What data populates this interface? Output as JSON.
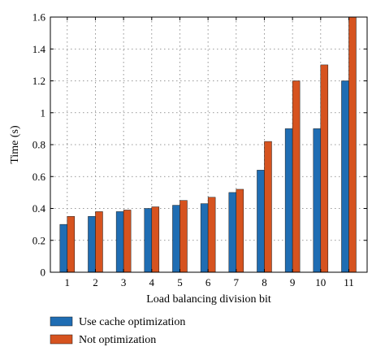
{
  "chart_data": {
    "type": "bar",
    "xlabel": "Load balancing division bit",
    "ylabel": "Time (s)",
    "categories": [
      "1",
      "2",
      "3",
      "4",
      "5",
      "6",
      "7",
      "8",
      "9",
      "10",
      "11"
    ],
    "ylim": [
      0,
      1.6
    ],
    "yticks": [
      "0",
      "0.2",
      "0.4",
      "0.6",
      "0.8",
      "1",
      "1.2",
      "1.4",
      "1.6"
    ],
    "grid": true,
    "legend_position": "bottom-left",
    "series": [
      {
        "name": "Use cache optimization",
        "color": "#1f6db3",
        "values": [
          0.3,
          0.35,
          0.38,
          0.4,
          0.42,
          0.43,
          0.5,
          0.64,
          0.9,
          0.9,
          1.2
        ]
      },
      {
        "name": "Not optimization",
        "color": "#d6531f",
        "values": [
          0.35,
          0.38,
          0.39,
          0.41,
          0.45,
          0.47,
          0.52,
          0.82,
          1.2,
          1.3,
          1.6
        ]
      }
    ]
  }
}
